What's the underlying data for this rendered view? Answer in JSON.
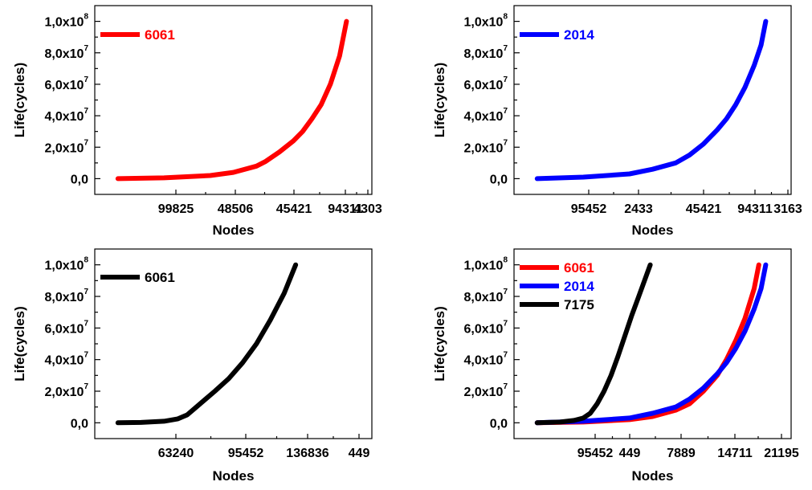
{
  "chart_data": [
    {
      "type": "line",
      "title": "",
      "xlabel": "Nodes",
      "ylabel": "Life(cycles)",
      "x_tick_labels": [
        "99825",
        "48506",
        "45421",
        "94311",
        "4303"
      ],
      "y_tick_labels": [
        {
          "mantissa": "0,0",
          "exp": ""
        },
        {
          "mantissa": "2,0x10",
          "exp": "7"
        },
        {
          "mantissa": "4,0x10",
          "exp": "7"
        },
        {
          "mantissa": "6,0x10",
          "exp": "7"
        },
        {
          "mantissa": "8,0x10",
          "exp": "7"
        },
        {
          "mantissa": "1,0x10",
          "exp": "8"
        }
      ],
      "ylim": [
        -10000000,
        110000000
      ],
      "legend_position": "top-left",
      "series": [
        {
          "name": "6061",
          "color": "#ff0000",
          "x": [
            0.0,
            1.0,
            2.0,
            2.5,
            3.0,
            3.2,
            3.5,
            3.8,
            4.0,
            4.2,
            4.4,
            4.6,
            4.8,
            4.95
          ],
          "y": [
            0,
            500000,
            2000000,
            4000000,
            8000000,
            11000000,
            17000000,
            24000000,
            30000000,
            38000000,
            47000000,
            60000000,
            78000000,
            100000000
          ]
        }
      ]
    },
    {
      "type": "line",
      "title": "",
      "xlabel": "Nodes",
      "ylabel": "Life(cycles)",
      "x_tick_labels": [
        "95452",
        "2433",
        "45421",
        "94311",
        "3163"
      ],
      "y_tick_labels": [
        {
          "mantissa": "0,0",
          "exp": ""
        },
        {
          "mantissa": "2,0x10",
          "exp": "7"
        },
        {
          "mantissa": "4,0x10",
          "exp": "7"
        },
        {
          "mantissa": "6,0x10",
          "exp": "7"
        },
        {
          "mantissa": "8,0x10",
          "exp": "7"
        },
        {
          "mantissa": "1,0x10",
          "exp": "8"
        }
      ],
      "ylim": [
        -10000000,
        110000000
      ],
      "legend_position": "top-left",
      "series": [
        {
          "name": "2014",
          "color": "#0000ff",
          "x": [
            0.0,
            1.0,
            2.0,
            2.5,
            3.0,
            3.3,
            3.6,
            3.9,
            4.1,
            4.3,
            4.5,
            4.7,
            4.85,
            4.95
          ],
          "y": [
            0,
            1000000,
            3000000,
            6000000,
            10000000,
            15000000,
            22000000,
            31000000,
            38000000,
            47000000,
            58000000,
            72000000,
            85000000,
            100000000
          ]
        }
      ]
    },
    {
      "type": "line",
      "title": "",
      "xlabel": "Nodes",
      "ylabel": "Life(cycles)",
      "x_tick_labels": [
        "63240",
        "95452",
        "136836",
        "449"
      ],
      "y_tick_labels": [
        {
          "mantissa": "0,0",
          "exp": ""
        },
        {
          "mantissa": "2,0x10",
          "exp": "7"
        },
        {
          "mantissa": "4,0x10",
          "exp": "7"
        },
        {
          "mantissa": "6,0x10",
          "exp": "7"
        },
        {
          "mantissa": "8,0x10",
          "exp": "7"
        },
        {
          "mantissa": "1,0x10",
          "exp": "8"
        }
      ],
      "ylim": [
        -10000000,
        110000000
      ],
      "legend_position": "top-left",
      "series": [
        {
          "name": "6061",
          "color": "#000000",
          "x": [
            0.0,
            0.5,
            1.0,
            1.3,
            1.5,
            1.7,
            1.9,
            2.1,
            2.4,
            2.7,
            3.0,
            3.3,
            3.6,
            3.85
          ],
          "y": [
            0,
            200000,
            1000000,
            2500000,
            5000000,
            10000000,
            15000000,
            20000000,
            28000000,
            38000000,
            50000000,
            65000000,
            82000000,
            100000000
          ]
        }
      ]
    },
    {
      "type": "line",
      "title": "",
      "xlabel": "Nodes",
      "ylabel": "Life(cycles)",
      "x_tick_labels": [
        "95452",
        "449",
        "7889",
        "14711",
        "21195"
      ],
      "y_tick_labels": [
        {
          "mantissa": "0,0",
          "exp": ""
        },
        {
          "mantissa": "2,0x10",
          "exp": "7"
        },
        {
          "mantissa": "4,0x10",
          "exp": "7"
        },
        {
          "mantissa": "6,0x10",
          "exp": "7"
        },
        {
          "mantissa": "8,0x10",
          "exp": "7"
        },
        {
          "mantissa": "1,0x10",
          "exp": "8"
        }
      ],
      "ylim": [
        -10000000,
        110000000
      ],
      "legend_position": "top-left",
      "series": [
        {
          "name": "6061",
          "color": "#ff0000",
          "x": [
            0.0,
            1.0,
            2.0,
            2.5,
            3.0,
            3.3,
            3.6,
            3.9,
            4.1,
            4.3,
            4.5,
            4.7,
            4.8
          ],
          "y": [
            0,
            500000,
            2000000,
            4000000,
            8000000,
            12000000,
            20000000,
            30000000,
            40000000,
            52000000,
            66000000,
            85000000,
            100000000
          ]
        },
        {
          "name": "2014",
          "color": "#0000ff",
          "x": [
            0.0,
            1.0,
            2.0,
            2.5,
            3.0,
            3.3,
            3.6,
            3.9,
            4.1,
            4.3,
            4.5,
            4.7,
            4.85,
            4.95
          ],
          "y": [
            0,
            1000000,
            3000000,
            6000000,
            10000000,
            15000000,
            22000000,
            31000000,
            38000000,
            47000000,
            58000000,
            72000000,
            85000000,
            100000000
          ]
        },
        {
          "name": "7175",
          "color": "#000000",
          "x": [
            0.0,
            0.5,
            0.8,
            1.0,
            1.15,
            1.3,
            1.45,
            1.6,
            1.75,
            1.9,
            2.05,
            2.2,
            2.35,
            2.45
          ],
          "y": [
            0,
            500000,
            1500000,
            3000000,
            6000000,
            12000000,
            20000000,
            30000000,
            42000000,
            55000000,
            68000000,
            80000000,
            92000000,
            100000000
          ]
        }
      ]
    }
  ]
}
